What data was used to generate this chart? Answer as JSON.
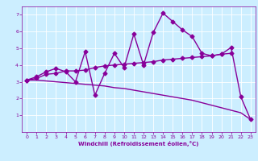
{
  "xlabel": "Windchill (Refroidissement éolien,°C)",
  "x_values": [
    0,
    1,
    2,
    3,
    4,
    5,
    6,
    7,
    8,
    9,
    10,
    11,
    12,
    13,
    14,
    15,
    16,
    17,
    18,
    19,
    20,
    21,
    22,
    23
  ],
  "line1_y": [
    3.1,
    3.3,
    3.6,
    3.8,
    3.6,
    3.0,
    4.8,
    2.2,
    3.5,
    4.7,
    3.85,
    5.85,
    4.0,
    5.95,
    7.1,
    6.6,
    6.1,
    5.7,
    4.7,
    4.55,
    4.65,
    5.05,
    2.1,
    0.75
  ],
  "line2_y": [
    3.1,
    3.2,
    3.45,
    3.5,
    3.65,
    3.65,
    3.7,
    3.85,
    3.95,
    4.0,
    4.05,
    4.1,
    4.15,
    4.2,
    4.3,
    4.35,
    4.4,
    4.45,
    4.5,
    4.55,
    4.65,
    4.7,
    null,
    null
  ],
  "line3_y": [
    3.1,
    3.1,
    3.05,
    3.0,
    2.95,
    2.9,
    2.85,
    2.8,
    2.75,
    2.65,
    2.6,
    2.5,
    2.4,
    2.3,
    2.2,
    2.1,
    2.0,
    1.9,
    1.75,
    1.6,
    1.45,
    1.3,
    1.15,
    0.75
  ],
  "color": "#880099",
  "bg_color": "#cceeff",
  "plot_bg": "#cceeff",
  "grid_color": "#bbdddd",
  "ylim": [
    0,
    7.5
  ],
  "xlim": [
    -0.5,
    23.5
  ],
  "yticks": [
    1,
    2,
    3,
    4,
    5,
    6,
    7
  ],
  "xticks": [
    0,
    1,
    2,
    3,
    4,
    5,
    6,
    7,
    8,
    9,
    10,
    11,
    12,
    13,
    14,
    15,
    16,
    17,
    18,
    19,
    20,
    21,
    22,
    23
  ],
  "marker": "D",
  "markersize": 2.5,
  "linewidth": 1.0
}
